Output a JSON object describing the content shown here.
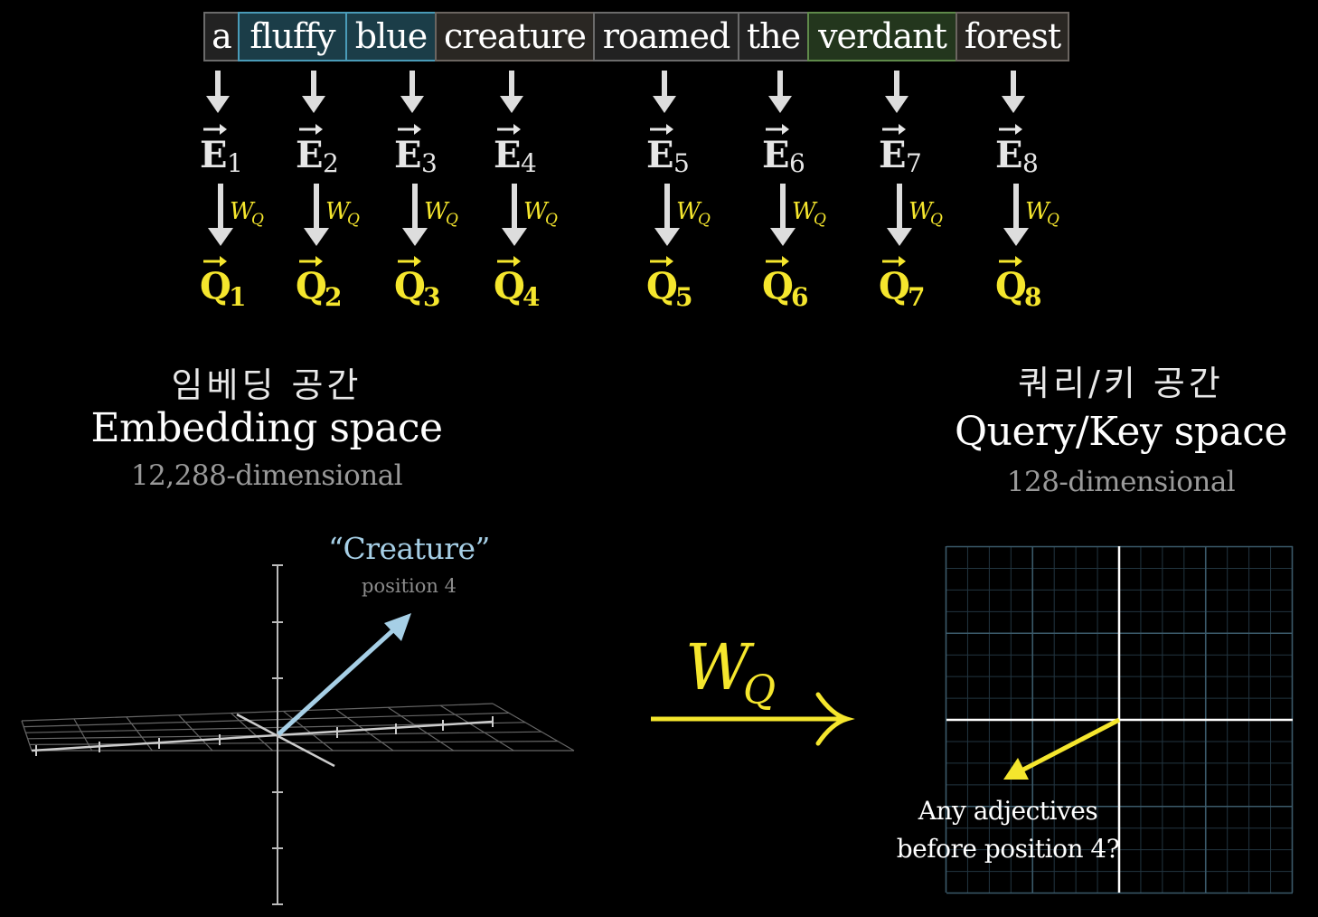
{
  "tokens": [
    {
      "text": "a",
      "bg": "#222222",
      "border": "#6b6b6b"
    },
    {
      "text": "fluffy",
      "bg": "#1b3d48",
      "border": "#4a9bb8"
    },
    {
      "text": "blue",
      "bg": "#1b3d48",
      "border": "#4a9bb8"
    },
    {
      "text": "creature",
      "bg": "#2a2723",
      "border": "#6b6560"
    },
    {
      "text": "roamed",
      "bg": "#222222",
      "border": "#6b6b6b"
    },
    {
      "text": "the",
      "bg": "#222222",
      "border": "#6b6b6b"
    },
    {
      "text": "verdant",
      "bg": "#23361d",
      "border": "#5f8a4a"
    },
    {
      "text": "forest",
      "bg": "#2a2723",
      "border": "#6b6560"
    }
  ],
  "embeddings": [
    {
      "symbol": "E",
      "sub": "1"
    },
    {
      "symbol": "E",
      "sub": "2"
    },
    {
      "symbol": "E",
      "sub": "3"
    },
    {
      "symbol": "E",
      "sub": "4"
    },
    {
      "symbol": "E",
      "sub": "5"
    },
    {
      "symbol": "E",
      "sub": "6"
    },
    {
      "symbol": "E",
      "sub": "7"
    },
    {
      "symbol": "E",
      "sub": "8"
    }
  ],
  "queries": [
    {
      "symbol": "Q",
      "sub": "1"
    },
    {
      "symbol": "Q",
      "sub": "2"
    },
    {
      "symbol": "Q",
      "sub": "3"
    },
    {
      "symbol": "Q",
      "sub": "4"
    },
    {
      "symbol": "Q",
      "sub": "5"
    },
    {
      "symbol": "Q",
      "sub": "6"
    },
    {
      "symbol": "Q",
      "sub": "7"
    },
    {
      "symbol": "Q",
      "sub": "8"
    }
  ],
  "weight_label": {
    "symbol": "W",
    "sub": "Q"
  },
  "embedding_space": {
    "title_ko": "임베딩 공간",
    "name": "Embedding space",
    "dimension": "12,288-dimensional",
    "vector_label": "“Creature”",
    "vector_sublabel": "position 4"
  },
  "query_space": {
    "title_ko": "쿼리/키 공간",
    "name": "Query/Key space",
    "dimension": "128-dimensional",
    "question_line1": "Any adjectives",
    "question_line2": "before position 4?"
  },
  "colors": {
    "background": "#000000",
    "query_yellow": "#f5e62d",
    "creature_blue": "#a6cfe6",
    "arrow_gray": "#dddddd",
    "grid_blue": "#3b5a6a"
  }
}
